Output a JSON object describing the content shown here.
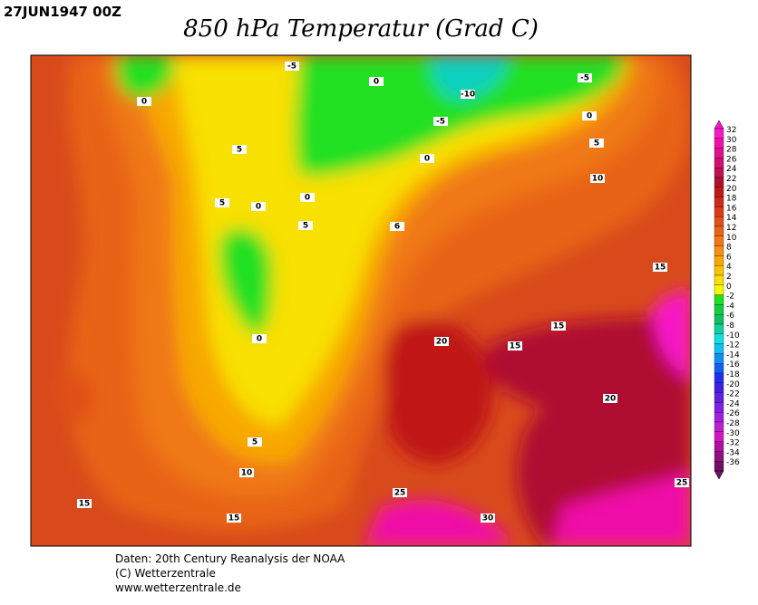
{
  "header": {
    "date": "27JUN1947 00Z",
    "title": "850 hPa Temperatur (Grad C)"
  },
  "colorbar": {
    "labels": [
      "32",
      "30",
      "28",
      "26",
      "24",
      "22",
      "20",
      "18",
      "16",
      "14",
      "12",
      "10",
      "8",
      "6",
      "4",
      "2",
      "0",
      "-2",
      "-4",
      "-6",
      "-8",
      "-10",
      "-12",
      "-14",
      "-16",
      "-18",
      "-20",
      "-22",
      "-24",
      "-26",
      "-28",
      "-30",
      "-32",
      "-34",
      "-36"
    ],
    "colors": [
      "#f818c8",
      "#f010a8",
      "#e01090",
      "#d01070",
      "#c01050",
      "#b01030",
      "#c01818",
      "#d02818",
      "#d83c18",
      "#e05018",
      "#e86418",
      "#f07818",
      "#f89010",
      "#f8a800",
      "#f8c400",
      "#f8e000",
      "#f8f800",
      "#20e020",
      "#10d040",
      "#10c060",
      "#10d0a0",
      "#10e0e0",
      "#10c0f0",
      "#1090f0",
      "#1060f0",
      "#2030f0",
      "#4020e0",
      "#6020e0",
      "#8020e0",
      "#a020e0",
      "#c020d0",
      "#d018c0",
      "#b010a0",
      "#901080",
      "#701060"
    ]
  },
  "contours": [
    "-5",
    "0",
    "-10",
    "-5",
    "-5",
    "0",
    "5",
    "10",
    "0",
    "5",
    "5",
    "0",
    "0",
    "5",
    "6",
    "0",
    "0",
    "15",
    "15",
    "15",
    "20",
    "20",
    "5",
    "10",
    "15",
    "15",
    "25",
    "30",
    "25"
  ],
  "footer": [
    "Daten: 20th Century Reanalysis der NOAA",
    "(C) Wetterzentrale",
    "www.wetterzentrale.de"
  ]
}
